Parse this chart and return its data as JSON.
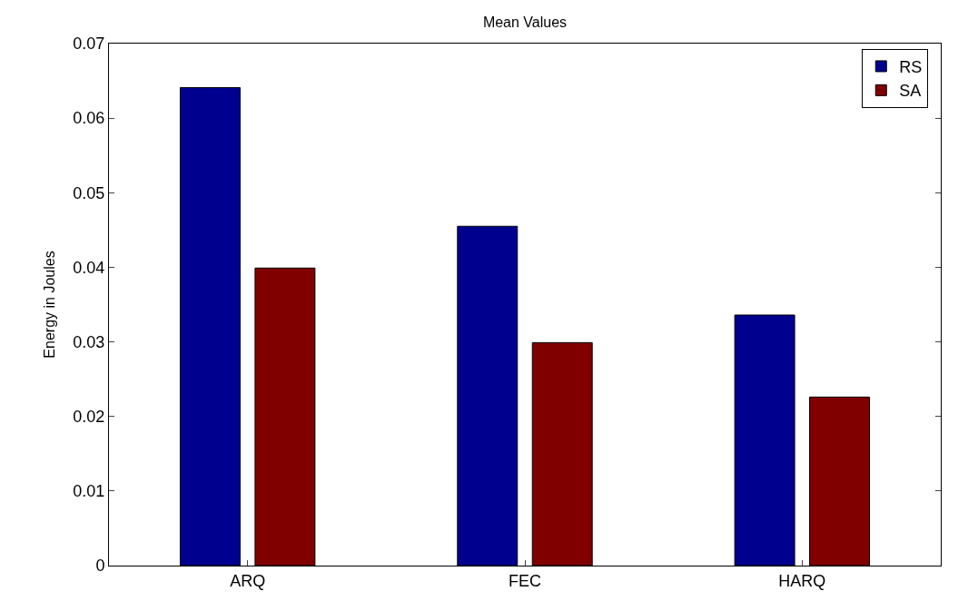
{
  "chart_data": {
    "type": "bar",
    "title": "Mean Values",
    "ylabel": "Energy in Joules",
    "categories": [
      "ARQ",
      "FEC",
      "HARQ"
    ],
    "series": [
      {
        "name": "RS",
        "color": "#00008f",
        "values": [
          0.0641,
          0.0455,
          0.0336
        ]
      },
      {
        "name": "SA",
        "color": "#800000",
        "values": [
          0.0399,
          0.0299,
          0.0226
        ]
      }
    ],
    "ylim": [
      0,
      0.07
    ],
    "yticks": [
      0,
      0.01,
      0.02,
      0.03,
      0.04,
      0.05,
      0.06,
      0.07
    ],
    "legend": "top right"
  }
}
